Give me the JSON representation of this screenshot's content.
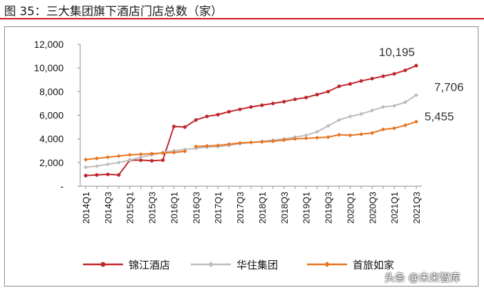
{
  "figure_title": "图 35：三大集团旗下酒店门店总数（家）",
  "watermark": "头条 @未来智库",
  "chart_data": {
    "type": "line",
    "title": "三大集团旗下酒店门店总数（家）",
    "xlabel": "",
    "ylabel": "",
    "ylim": [
      0,
      12000
    ],
    "yticks": [
      0,
      2000,
      4000,
      6000,
      8000,
      10000,
      12000
    ],
    "ytick_labels": [
      "-",
      "2,000",
      "4,000",
      "6,000",
      "8,000",
      "10,000",
      "12,000"
    ],
    "categories": [
      "2014Q1",
      "2014Q2",
      "2014Q3",
      "2014Q4",
      "2015Q1",
      "2015Q2",
      "2015Q3",
      "2015Q4",
      "2016Q1",
      "2016Q2",
      "2016Q3",
      "2016Q4",
      "2017Q1",
      "2017Q2",
      "2017Q3",
      "2017Q4",
      "2018Q1",
      "2018Q2",
      "2018Q3",
      "2018Q4",
      "2019Q1",
      "2019Q2",
      "2019Q3",
      "2019Q4",
      "2020Q1",
      "2020Q2",
      "2020Q3",
      "2020Q4",
      "2021Q1",
      "2021Q2",
      "2021Q3"
    ],
    "xtick_labels": [
      "2014Q1",
      "2014Q3",
      "2015Q1",
      "2015Q3",
      "2016Q1",
      "2016Q3",
      "2017Q1",
      "2017Q3",
      "2018Q1",
      "2018Q3",
      "2019Q1",
      "2019Q3",
      "2020Q1",
      "2020Q3",
      "2021Q1",
      "2021Q3"
    ],
    "legend_position": "bottom",
    "series": [
      {
        "name": "锦江酒店",
        "color": "#c0272d",
        "marker": "circle",
        "end_label": "10,195",
        "segments": [
          {
            "start": 0,
            "values": [
              900,
              950,
              1000,
              950,
              2200,
              2200,
              2150,
              2200,
              5050,
              5000,
              5600,
              5900,
              6050,
              6300,
              6500,
              6700,
              6850,
              7000,
              7150,
              7350,
              7500,
              7750,
              8000,
              8450,
              8650,
              8900,
              9100,
              9300,
              9500,
              9800,
              10195
            ]
          }
        ]
      },
      {
        "name": "华住集团",
        "color": "#bdbdbd",
        "marker": "diamond",
        "end_label": "7,706",
        "segments": [
          {
            "start": 0,
            "values": [
              1600,
              1700,
              1850,
              2000,
              2200,
              2450,
              2650,
              2850,
              3000,
              3100,
              3200,
              3300,
              3350,
              3450,
              3600,
              3700,
              3800,
              3900,
              4000,
              4150,
              4300,
              4600,
              5100,
              5600,
              5900,
              6100,
              6400,
              6700,
              6800,
              7100,
              7706
            ]
          }
        ]
      },
      {
        "name": "首旅如家",
        "color": "#e8731e",
        "marker": "diamond",
        "end_label": "5,455",
        "segments": [
          {
            "start": 0,
            "values": [
              2250,
              2350,
              2450,
              2550,
              2650,
              2700,
              2750,
              2800,
              2850,
              2950
            ]
          },
          {
            "start": 10,
            "values": [
              3350,
              3400,
              3450,
              3550,
              3650,
              3700,
              3750,
              3800,
              3900,
              4000,
              4050,
              4100,
              4150,
              4350,
              4300,
              4400,
              4500,
              4800,
              4900,
              5150,
              5455
            ]
          }
        ]
      }
    ]
  }
}
